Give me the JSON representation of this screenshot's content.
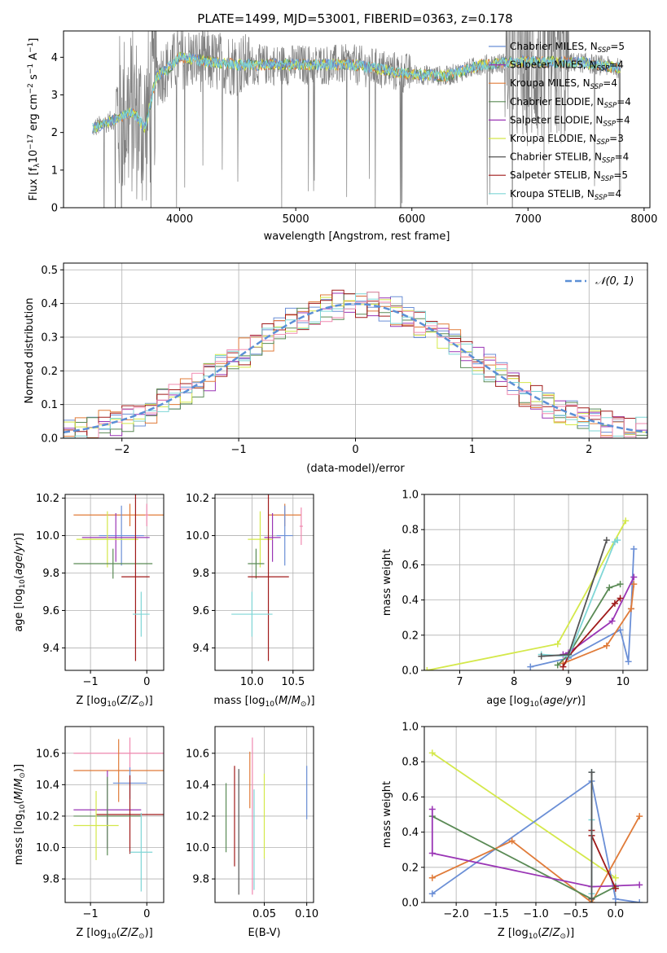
{
  "title": "PLATE=1499, MJD=53001, FIBERID=0363, z=0.178",
  "colors": {
    "cmiles": "#6b8fd6",
    "smiles": "#9a35b5",
    "kmiles": "#e07b39",
    "celodie": "#5a8a55",
    "selodie": "#9a35b5",
    "kelodie": "#d4e84a",
    "cstelib": "#555555",
    "sstelib": "#a01a1a",
    "kstelib": "#7fd6d6",
    "data": "#7f7f7f",
    "pink": "#f08ab0",
    "grid": "#b0b0b0"
  },
  "legend": [
    {
      "pre": "Chabrier MILES, N",
      "sub": "SSP",
      "post": "=5",
      "color": "#6b8fd6"
    },
    {
      "pre": "Salpeter MILES, N",
      "sub": "SSP",
      "post": "=4",
      "color": "#9a35b5"
    },
    {
      "pre": "Kroupa MILES, N",
      "sub": "SSP",
      "post": "=4",
      "color": "#e07b39"
    },
    {
      "pre": "Chabrier ELODIE, N",
      "sub": "SSP",
      "post": "=4",
      "color": "#5a8a55"
    },
    {
      "pre": "Salpeter ELODIE, N",
      "sub": "SSP",
      "post": "=4",
      "color": "#9a35b5"
    },
    {
      "pre": "Kroupa ELODIE, N",
      "sub": "SSP",
      "post": "=3",
      "color": "#d4e84a"
    },
    {
      "pre": "Chabrier STELIB, N",
      "sub": "SSP",
      "post": "=4",
      "color": "#555555"
    },
    {
      "pre": "Salpeter STELIB, N",
      "sub": "SSP",
      "post": "=5",
      "color": "#a01a1a"
    },
    {
      "pre": "Kroupa STELIB, N",
      "sub": "SSP",
      "post": "=4",
      "color": "#7fd6d6"
    }
  ],
  "chart_data": [
    {
      "type": "line",
      "xlabel": "wavelength [Angstrom, rest frame]",
      "ylabel": "Flux [f_λ 10^-17 erg cm^-2 s^-1 A^-1]",
      "xticks": [
        4000,
        5000,
        6000,
        7000,
        8000
      ],
      "yticks": [
        0,
        1,
        2,
        3,
        4
      ],
      "xlim": [
        3000,
        8050
      ],
      "ylim": [
        0,
        4.7
      ],
      "continuum_x": [
        3250,
        3400,
        3600,
        3700,
        3800,
        3900,
        4000,
        4200,
        4500,
        5000,
        5500,
        6000,
        6300,
        6600,
        7000,
        7500,
        7800
      ],
      "continuum_y": [
        2.1,
        2.3,
        2.55,
        2.1,
        3.5,
        3.7,
        4.0,
        3.9,
        3.8,
        3.8,
        3.8,
        3.55,
        3.5,
        3.8,
        3.9,
        3.85,
        3.7
      ]
    },
    {
      "type": "line",
      "xlabel": "(data-model)/error",
      "ylabel": "Normed distribution",
      "xticks": [
        -2,
        -1,
        0,
        1,
        2
      ],
      "yticks": [
        0.0,
        0.1,
        0.2,
        0.3,
        0.4,
        0.5
      ],
      "xlim": [
        -2.5,
        2.5
      ],
      "ylim": [
        0,
        0.52
      ],
      "legend": "𝒩(0, 1)",
      "normal_mean": 0,
      "normal_sd": 1
    },
    {
      "type": "scatter",
      "xlabel": "Z [log10(Z/Z☉)]",
      "ylabel": "age [log10(age/yr)]",
      "xticks": [
        -1,
        0
      ],
      "yticks": [
        9.4,
        9.6,
        9.8,
        10.0,
        10.2
      ],
      "xlim": [
        -1.45,
        0.3
      ],
      "ylim": [
        9.28,
        10.22
      ],
      "points": [
        {
          "x": -0.3,
          "y": 10.11,
          "xerr": 1.0,
          "yerr": 0.06,
          "color": "#e07b39"
        },
        {
          "x": -0.45,
          "y": 10.0,
          "xerr": 0.4,
          "yerr": 0.16,
          "color": "#6b8fd6"
        },
        {
          "x": -0.55,
          "y": 9.99,
          "xerr": 0.6,
          "yerr": 0.13,
          "color": "#9a35b5"
        },
        {
          "x": -0.7,
          "y": 9.98,
          "xerr": 0.55,
          "yerr": 0.15,
          "color": "#d4e84a"
        },
        {
          "x": -0.6,
          "y": 9.85,
          "xerr": 0.7,
          "yerr": 0.08,
          "color": "#5a8a55"
        },
        {
          "x": -0.2,
          "y": 9.78,
          "xerr": 0.25,
          "yerr": 0.45,
          "color": "#a01a1a"
        },
        {
          "x": -0.1,
          "y": 9.58,
          "xerr": 0.15,
          "yerr": 0.12,
          "color": "#7fd6d6"
        },
        {
          "x": 0.0,
          "y": 10.11,
          "xerr": 0.03,
          "yerr": 0.06,
          "color": "#f08ab0"
        }
      ]
    },
    {
      "type": "scatter",
      "xlabel": "mass [log10(M/M☉)]",
      "ylabel": "",
      "xticks": [
        10.0,
        10.5
      ],
      "yticks": [
        9.4,
        9.6,
        9.8,
        10.0,
        10.2
      ],
      "xlim": [
        9.55,
        10.75
      ],
      "ylim": [
        9.28,
        10.22
      ],
      "points": [
        {
          "x": 10.4,
          "y": 10.11,
          "xerr": 0.2,
          "yerr": 0.06,
          "color": "#e07b39"
        },
        {
          "x": 10.4,
          "y": 10.0,
          "xerr": 0.1,
          "yerr": 0.16,
          "color": "#6b8fd6"
        },
        {
          "x": 10.25,
          "y": 9.99,
          "xerr": 0.1,
          "yerr": 0.13,
          "color": "#9a35b5"
        },
        {
          "x": 10.1,
          "y": 9.98,
          "xerr": 0.15,
          "yerr": 0.15,
          "color": "#d4e84a"
        },
        {
          "x": 10.05,
          "y": 9.85,
          "xerr": 0.1,
          "yerr": 0.08,
          "color": "#5a8a55"
        },
        {
          "x": 10.2,
          "y": 9.78,
          "xerr": 0.25,
          "yerr": 0.45,
          "color": "#a01a1a"
        },
        {
          "x": 10.0,
          "y": 9.58,
          "xerr": 0.25,
          "yerr": 0.12,
          "color": "#7fd6d6"
        },
        {
          "x": 10.6,
          "y": 10.05,
          "xerr": 0.02,
          "yerr": 0.1,
          "color": "#f08ab0"
        }
      ]
    },
    {
      "type": "line",
      "xlabel": "age [log10(age/yr)]",
      "ylabel": "mass weight",
      "xticks": [
        7,
        8,
        9,
        10
      ],
      "yticks": [
        0.0,
        0.2,
        0.4,
        0.6,
        0.8,
        1.0
      ],
      "xlim": [
        6.35,
        10.45
      ],
      "ylim": [
        0,
        1
      ],
      "series": [
        {
          "color": "#d4e84a",
          "x": [
            6.4,
            8.8,
            10.05
          ],
          "y": [
            0.0,
            0.15,
            0.85
          ]
        },
        {
          "color": "#6b8fd6",
          "x": [
            8.3,
            9.0,
            9.95,
            10.1,
            10.15,
            10.2
          ],
          "y": [
            0.02,
            0.07,
            0.23,
            0.05,
            0.35,
            0.69
          ]
        },
        {
          "color": "#e07b39",
          "x": [
            8.9,
            9.7,
            10.15,
            10.2
          ],
          "y": [
            0.04,
            0.14,
            0.35,
            0.49
          ]
        },
        {
          "color": "#5a8a55",
          "x": [
            8.8,
            9.0,
            9.75,
            9.95
          ],
          "y": [
            0.03,
            0.09,
            0.47,
            0.49
          ]
        },
        {
          "color": "#9a35b5",
          "x": [
            8.9,
            9.0,
            9.8,
            10.2
          ],
          "y": [
            0.09,
            0.1,
            0.28,
            0.53
          ]
        },
        {
          "color": "#a01a1a",
          "x": [
            8.9,
            9.0,
            9.85,
            9.95
          ],
          "y": [
            0.02,
            0.08,
            0.38,
            0.41
          ]
        },
        {
          "color": "#7fd6d6",
          "x": [
            8.5,
            9.0,
            9.85,
            9.9
          ],
          "y": [
            0.09,
            0.08,
            0.73,
            0.74
          ]
        },
        {
          "color": "#555555",
          "x": [
            8.5,
            9.0,
            9.7
          ],
          "y": [
            0.08,
            0.09,
            0.74
          ]
        }
      ]
    },
    {
      "type": "scatter",
      "xlabel": "Z [log10(Z/Z☉)]",
      "ylabel": "mass [log10(M/M☉)]",
      "xticks": [
        -1,
        0
      ],
      "yticks": [
        9.8,
        10.0,
        10.2,
        10.4,
        10.6
      ],
      "xlim": [
        -1.45,
        0.3
      ],
      "ylim": [
        9.65,
        10.77
      ],
      "points": [
        {
          "x": -0.3,
          "y": 10.6,
          "xerr": 1.0,
          "yerr": 0.1,
          "color": "#f08ab0"
        },
        {
          "x": -0.5,
          "y": 10.49,
          "xerr": 0.8,
          "yerr": 0.2,
          "color": "#e07b39"
        },
        {
          "x": -0.3,
          "y": 10.41,
          "xerr": 0.3,
          "yerr": 0.1,
          "color": "#6b8fd6"
        },
        {
          "x": -0.7,
          "y": 10.24,
          "xerr": 0.6,
          "yerr": 0.25,
          "color": "#9a35b5"
        },
        {
          "x": -0.3,
          "y": 10.21,
          "xerr": 0.6,
          "yerr": 0.25,
          "color": "#a01a1a"
        },
        {
          "x": -0.7,
          "y": 10.2,
          "xerr": 0.6,
          "yerr": 0.25,
          "color": "#5a8a55"
        },
        {
          "x": -0.9,
          "y": 10.14,
          "xerr": 0.4,
          "yerr": 0.22,
          "color": "#d4e84a"
        },
        {
          "x": -0.1,
          "y": 9.97,
          "xerr": 0.2,
          "yerr": 0.25,
          "color": "#7fd6d6"
        }
      ]
    },
    {
      "type": "scatter",
      "xlabel": "E(B-V)",
      "ylabel": "",
      "xticks": [
        0.05,
        0.1
      ],
      "yticks": [
        9.8,
        10.0,
        10.2,
        10.4,
        10.6
      ],
      "xlim": [
        -0.008,
        0.108
      ],
      "ylim": [
        9.65,
        10.77
      ],
      "points": [
        {
          "x": 0.005,
          "y": 10.19,
          "yerr": 0.22,
          "color": "#5a8a55"
        },
        {
          "x": 0.015,
          "y": 10.2,
          "yerr": 0.32,
          "color": "#a01a1a"
        },
        {
          "x": 0.02,
          "y": 10.1,
          "yerr": 0.4,
          "color": "#555555"
        },
        {
          "x": 0.033,
          "y": 10.43,
          "yerr": 0.18,
          "color": "#e07b39"
        },
        {
          "x": 0.036,
          "y": 10.2,
          "yerr": 0.5,
          "color": "#f08ab0"
        },
        {
          "x": 0.038,
          "y": 10.05,
          "yerr": 0.32,
          "color": "#7fd6d6"
        },
        {
          "x": 0.05,
          "y": 10.2,
          "yerr": 0.27,
          "color": "#d4e84a"
        },
        {
          "x": 0.1,
          "y": 10.35,
          "yerr": 0.17,
          "color": "#6b8fd6"
        }
      ]
    },
    {
      "type": "line",
      "xlabel": "Z [log10(Z/Z☉)]",
      "ylabel": "mass weight",
      "xticks": [
        -2.0,
        -1.5,
        -1.0,
        -0.5,
        0.0
      ],
      "yticks": [
        0.0,
        0.2,
        0.4,
        0.6,
        0.8,
        1.0
      ],
      "xlim": [
        -2.4,
        0.4
      ],
      "ylim": [
        0,
        1
      ],
      "series": [
        {
          "color": "#d4e84a",
          "x": [
            -2.3,
            0.0
          ],
          "y": [
            0.85,
            0.14
          ]
        },
        {
          "color": "#6b8fd6",
          "x": [
            -2.3,
            -0.3,
            0.0,
            0.3
          ],
          "y": [
            0.05,
            0.69,
            0.02,
            0.0
          ]
        },
        {
          "color": "#e07b39",
          "x": [
            -2.3,
            -1.3,
            -0.3,
            0.3
          ],
          "y": [
            0.14,
            0.35,
            0.0,
            0.49
          ]
        },
        {
          "color": "#5a8a55",
          "x": [
            -2.3,
            -0.3,
            0.0
          ],
          "y": [
            0.49,
            0.02,
            0.09
          ]
        },
        {
          "color": "#9a35b5",
          "x": [
            -2.3,
            -2.3,
            -0.3,
            0.3
          ],
          "y": [
            0.53,
            0.28,
            0.09,
            0.1
          ]
        },
        {
          "color": "#a01a1a",
          "x": [
            -0.3,
            -0.3,
            0.0
          ],
          "y": [
            0.41,
            0.38,
            0.08
          ]
        },
        {
          "color": "#7fd6d6",
          "x": [
            -0.3,
            -0.3,
            -0.3
          ],
          "y": [
            0.74,
            0.47,
            0.05
          ]
        },
        {
          "color": "#555555",
          "x": [
            -0.3,
            -0.3
          ],
          "y": [
            0.74,
            0.02
          ]
        }
      ]
    }
  ]
}
